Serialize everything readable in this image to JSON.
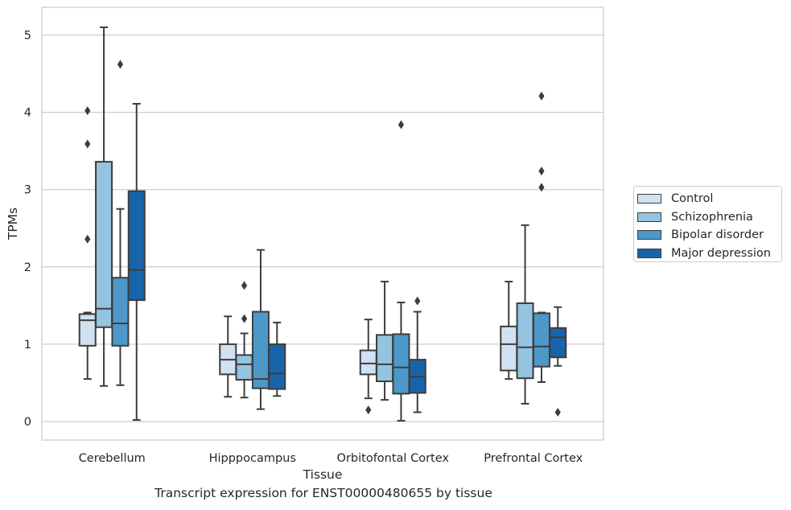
{
  "chart_data": {
    "type": "box",
    "xlabel": "Tissue",
    "ylabel": "TPMs",
    "caption": "Transcript expression for ENST00000480655 by tissue",
    "categories": [
      "Cerebellum",
      "Hipppocampus",
      "Orbitofontal Cortex",
      "Prefrontal Cortex"
    ],
    "ylim": [
      -0.25,
      5.35
    ],
    "yticks": [
      0,
      1,
      2,
      3,
      4,
      5
    ],
    "grid": true,
    "legend_position": "right",
    "series": [
      {
        "name": "Control",
        "color": "#d0e1f2",
        "boxes": [
          {
            "whislo": 0.55,
            "q1": 0.98,
            "med": 1.31,
            "q3": 1.39,
            "whishi": 1.41,
            "fliers": [
              2.36,
              3.59,
              4.02
            ]
          },
          {
            "whislo": 0.32,
            "q1": 0.61,
            "med": 0.8,
            "q3": 1.0,
            "whishi": 1.36,
            "fliers": []
          },
          {
            "whislo": 0.3,
            "q1": 0.61,
            "med": 0.75,
            "q3": 0.92,
            "whishi": 1.32,
            "fliers": [
              0.15
            ]
          },
          {
            "whislo": 0.55,
            "q1": 0.66,
            "med": 1.0,
            "q3": 1.23,
            "whishi": 1.81,
            "fliers": []
          }
        ]
      },
      {
        "name": "Schizophrenia",
        "color": "#94c4df",
        "boxes": [
          {
            "whislo": 0.46,
            "q1": 1.22,
            "med": 1.46,
            "q3": 3.36,
            "whishi": 5.1,
            "fliers": []
          },
          {
            "whislo": 0.31,
            "q1": 0.54,
            "med": 0.74,
            "q3": 0.86,
            "whishi": 1.14,
            "fliers": [
              1.33,
              1.76
            ]
          },
          {
            "whislo": 0.28,
            "q1": 0.52,
            "med": 0.74,
            "q3": 1.12,
            "whishi": 1.81,
            "fliers": []
          },
          {
            "whislo": 0.23,
            "q1": 0.56,
            "med": 0.96,
            "q3": 1.53,
            "whishi": 2.54,
            "fliers": []
          }
        ]
      },
      {
        "name": "Bipolar disorder",
        "color": "#4b98c9",
        "boxes": [
          {
            "whislo": 0.47,
            "q1": 0.98,
            "med": 1.27,
            "q3": 1.86,
            "whishi": 2.75,
            "fliers": [
              4.62
            ]
          },
          {
            "whislo": 0.16,
            "q1": 0.43,
            "med": 0.55,
            "q3": 1.42,
            "whishi": 2.22,
            "fliers": []
          },
          {
            "whislo": 0.01,
            "q1": 0.36,
            "med": 0.7,
            "q3": 1.13,
            "whishi": 1.54,
            "fliers": [
              3.84
            ]
          },
          {
            "whislo": 0.51,
            "q1": 0.71,
            "med": 0.97,
            "q3": 1.4,
            "whishi": 1.41,
            "fliers": [
              3.03,
              3.24,
              4.21
            ]
          }
        ]
      },
      {
        "name": "Major depression",
        "color": "#1864aa",
        "boxes": [
          {
            "whislo": 0.02,
            "q1": 1.57,
            "med": 1.96,
            "q3": 2.98,
            "whishi": 4.11,
            "fliers": []
          },
          {
            "whislo": 0.33,
            "q1": 0.42,
            "med": 0.62,
            "q3": 1.0,
            "whishi": 1.28,
            "fliers": []
          },
          {
            "whislo": 0.12,
            "q1": 0.37,
            "med": 0.58,
            "q3": 0.8,
            "whishi": 1.42,
            "fliers": [
              1.56
            ]
          },
          {
            "whislo": 0.72,
            "q1": 0.83,
            "med": 1.09,
            "q3": 1.21,
            "whishi": 1.48,
            "fliers": [
              0.12
            ]
          }
        ]
      }
    ]
  }
}
